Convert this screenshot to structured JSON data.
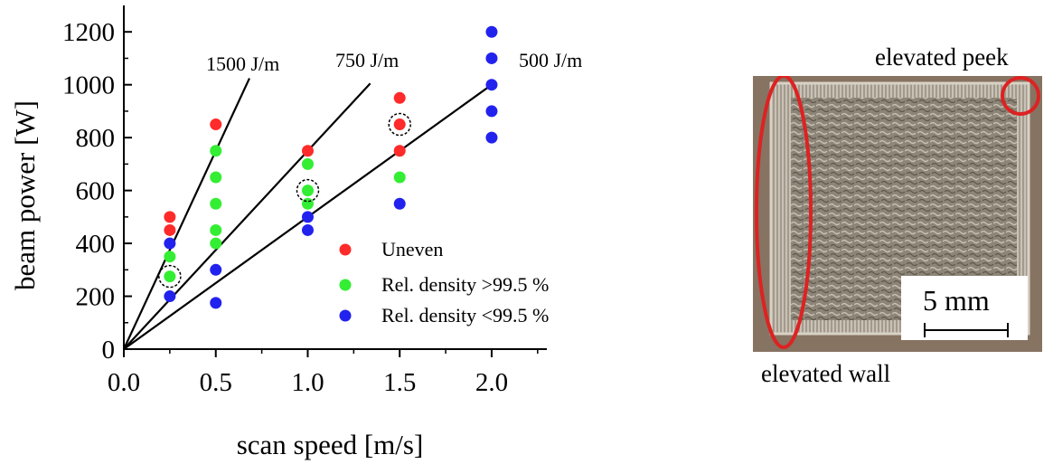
{
  "chart_data": {
    "type": "scatter",
    "xlabel": "scan speed [m/s]",
    "ylabel": "beam power [W]",
    "xlim": [
      0,
      2.3
    ],
    "ylim": [
      0,
      1300
    ],
    "xticks": [
      "0.0",
      "0.5",
      "1.0",
      "1.5",
      "2.0"
    ],
    "yticks": [
      "0",
      "200",
      "400",
      "600",
      "800",
      "1000",
      "1200"
    ],
    "xtick_values": [
      0,
      0.5,
      1.0,
      1.5,
      2.0
    ],
    "ytick_values": [
      0,
      200,
      400,
      600,
      800,
      1000,
      1200
    ],
    "grid": false,
    "legend_position": "bottom-right",
    "series": [
      {
        "name": "Uneven",
        "color": "#ff2a2a",
        "x": [
          0.25,
          0.25,
          0.5,
          1.0,
          1.5,
          1.5,
          1.5
        ],
        "y": [
          500,
          450,
          850,
          750,
          950,
          850,
          750
        ]
      },
      {
        "name": "Rel. density >99.5 %",
        "color": "#33ee33",
        "x": [
          0.25,
          0.25,
          0.5,
          0.5,
          0.5,
          0.5,
          0.5,
          1.0,
          1.0,
          1.0,
          1.5
        ],
        "y": [
          350,
          275,
          750,
          650,
          550,
          450,
          400,
          700,
          600,
          550,
          650
        ]
      },
      {
        "name": "Rel. density <99.5 %",
        "color": "#2222ee",
        "x": [
          0.25,
          0.25,
          0.5,
          0.5,
          1.0,
          1.0,
          1.5,
          2.0,
          2.0,
          2.0,
          2.0,
          2.0
        ],
        "y": [
          400,
          200,
          300,
          175,
          500,
          450,
          550,
          1200,
          1100,
          1000,
          900,
          800
        ]
      }
    ],
    "energy_lines": [
      {
        "label": "1500 J/m",
        "slope": 1500
      },
      {
        "label": "750 J/m",
        "slope": 750
      },
      {
        "label": "500 J/m",
        "slope": 500
      }
    ],
    "highlighted_points": [
      {
        "x": 0.25,
        "y": 275
      },
      {
        "x": 1.0,
        "y": 600
      },
      {
        "x": 1.5,
        "y": 850
      }
    ]
  },
  "photo": {
    "label_peek": "elevated peek",
    "label_wall": "elevated wall",
    "scale_bar": "5 mm",
    "highlight_color": "#dd2222"
  }
}
